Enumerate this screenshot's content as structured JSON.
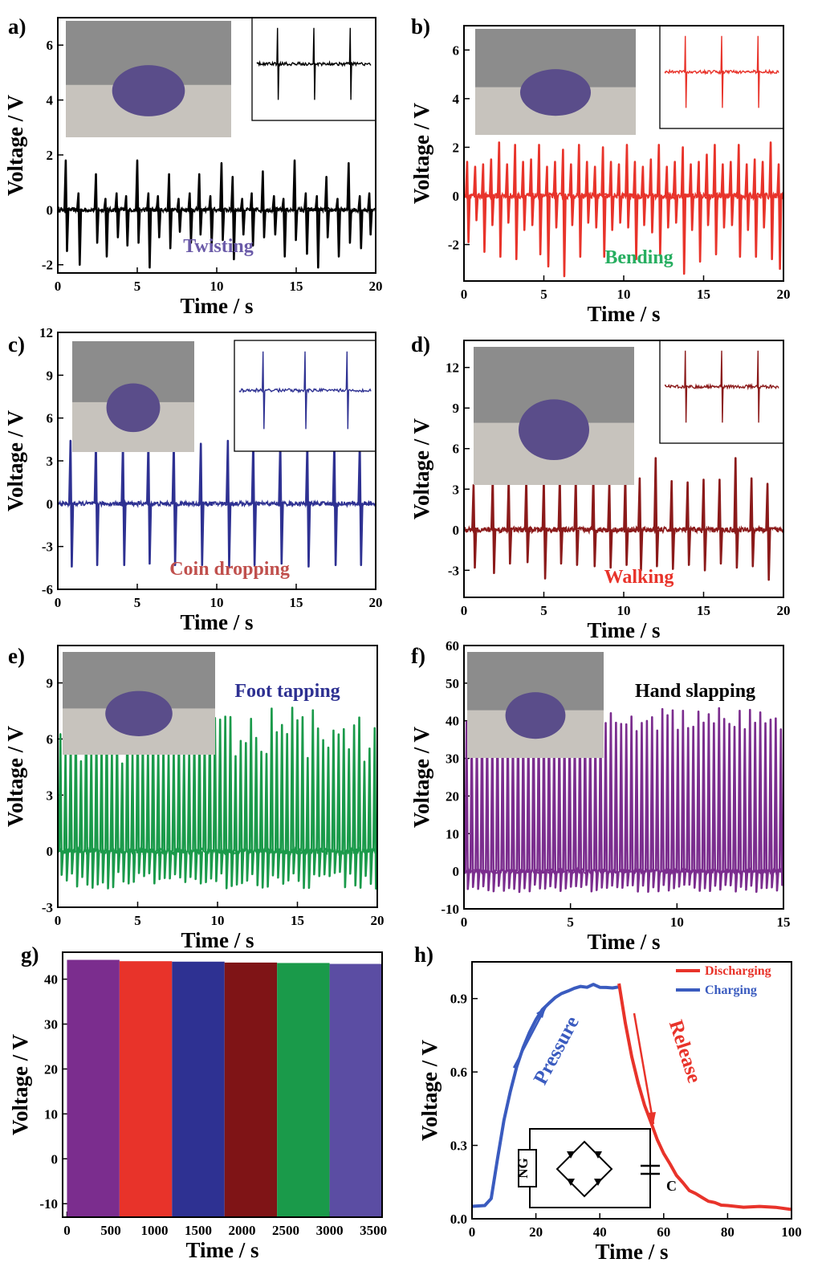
{
  "chart_data": [
    {
      "type": "line",
      "panel_label": "a)",
      "xlabel": "Time / s",
      "ylabel": "Voltage / V",
      "xlim": [
        0,
        20
      ],
      "ylim": [
        -2.3,
        7
      ],
      "xticks": [
        0,
        5,
        10,
        15,
        20
      ],
      "yticks": [
        -2,
        0,
        2,
        4,
        6
      ],
      "annotation": "Twisting",
      "annotation_color": "#6a5aa8",
      "series_color": "#000000",
      "baseline": 0,
      "spike_times": [
        0.5,
        1.3,
        2.4,
        3.0,
        3.7,
        4.3,
        5.0,
        5.7,
        6.3,
        7.0,
        7.6,
        8.3,
        8.9,
        9.6,
        10.3,
        11.0,
        11.6,
        12.2,
        12.9,
        13.6,
        14.2,
        14.9,
        15.6,
        16.3,
        16.9,
        17.6,
        18.3,
        19.0,
        19.6
      ],
      "spike_peaks": [
        1.8,
        0.6,
        1.3,
        0.4,
        0.6,
        0.5,
        1.8,
        0.6,
        0.5,
        1.3,
        0.4,
        0.6,
        1.3,
        0.5,
        1.7,
        1.2,
        0.4,
        0.6,
        1.4,
        0.5,
        0.4,
        1.8,
        0.6,
        0.5,
        1.2,
        0.4,
        1.7,
        0.5,
        0.6
      ],
      "spike_troughs": [
        -1.5,
        -2.0,
        -1.2,
        -1.7,
        -1.0,
        -1.3,
        -1.2,
        -2.1,
        -1.0,
        -1.4,
        -0.8,
        -1.2,
        -0.9,
        -1.3,
        -1.1,
        -1.8,
        -0.9,
        -1.3,
        -1.0,
        -0.9,
        -1.7,
        -1.1,
        -1.6,
        -2.1,
        -1.0,
        -1.7,
        -1.2,
        -1.4,
        -0.9
      ],
      "noise_amplitude": 0.08,
      "inset_caption": "",
      "inset_photo": "photo: fingers twisting the nanogenerator"
    },
    {
      "type": "line",
      "panel_label": "b)",
      "xlabel": "Time / s",
      "ylabel": "Voltage / V",
      "xlim": [
        0,
        20
      ],
      "ylim": [
        -3.5,
        7
      ],
      "xticks": [
        0,
        5,
        10,
        15,
        20
      ],
      "yticks": [
        -2,
        0,
        2,
        4,
        6
      ],
      "annotation": "Bending",
      "annotation_color": "#27ae60",
      "series_color": "#e8332a",
      "baseline": 0,
      "spike_times": [
        0.2,
        0.7,
        1.2,
        1.7,
        2.2,
        2.7,
        3.2,
        3.7,
        4.2,
        4.7,
        5.2,
        5.7,
        6.2,
        6.7,
        7.2,
        7.7,
        8.2,
        8.7,
        9.2,
        9.7,
        10.2,
        10.7,
        11.2,
        11.7,
        12.2,
        12.7,
        13.2,
        13.7,
        14.2,
        14.7,
        15.2,
        15.7,
        16.2,
        16.7,
        17.2,
        17.7,
        18.2,
        18.7,
        19.2,
        19.7
      ],
      "spike_peaks": [
        1.4,
        1.2,
        1.3,
        1.5,
        2.2,
        1.3,
        2.1,
        1.4,
        1.5,
        2.1,
        1.2,
        1.4,
        1.9,
        1.3,
        2.1,
        1.4,
        1.2,
        2.0,
        1.4,
        1.3,
        2.1,
        1.4,
        1.2,
        1.5,
        2.1,
        1.2,
        1.4,
        2.0,
        1.3,
        1.4,
        1.7,
        2.1,
        1.3,
        1.4,
        2.1,
        1.3,
        1.5,
        1.4,
        2.2,
        1.3
      ],
      "spike_troughs": [
        -1.9,
        -1.0,
        -2.3,
        -1.2,
        -2.5,
        -1.1,
        -2.6,
        -1.4,
        -1.2,
        -2.4,
        -2.9,
        -1.3,
        -3.3,
        -1.2,
        -2.5,
        -1.1,
        -1.3,
        -2.5,
        -1.4,
        -1.1,
        -1.3,
        -2.6,
        -1.2,
        -1.5,
        -2.4,
        -1.3,
        -1.1,
        -3.2,
        -1.4,
        -2.7,
        -1.2,
        -2.4,
        -1.3,
        -1.2,
        -2.5,
        -1.4,
        -2.5,
        -1.3,
        -2.6,
        -3.0
      ],
      "noise_amplitude": 0.12,
      "inset_caption": "",
      "inset_photo": "photo: fingers bending the device"
    },
    {
      "type": "line",
      "panel_label": "c)",
      "xlabel": "Time / s",
      "ylabel": "Voltage / V",
      "xlim": [
        0,
        20
      ],
      "ylim": [
        -6,
        12
      ],
      "xticks": [
        0,
        5,
        10,
        15,
        20
      ],
      "yticks": [
        -6,
        -3,
        0,
        3,
        6,
        9,
        12
      ],
      "annotation": "Coin dropping",
      "annotation_color": "#c0504d",
      "series_color": "#2e3192",
      "baseline": 0,
      "spike_times": [
        0.8,
        2.4,
        4.1,
        5.7,
        7.3,
        9.0,
        10.7,
        12.3,
        14.0,
        15.7,
        17.4,
        19.0
      ],
      "spike_peaks": [
        4.4,
        4.3,
        4.2,
        4.4,
        4.3,
        4.2,
        4.4,
        4.4,
        4.3,
        4.2,
        4.3,
        4.2
      ],
      "spike_troughs": [
        -4.4,
        -4.3,
        -4.3,
        -4.2,
        -4.3,
        -4.3,
        -4.4,
        -4.3,
        -4.2,
        -4.4,
        -4.3,
        -4.3
      ],
      "noise_amplitude": 0.15,
      "inset_caption": "",
      "inset_photo": "photo: coin dropped on the device"
    },
    {
      "type": "line",
      "panel_label": "d)",
      "xlabel": "Time / s",
      "ylabel": "Voltage / V",
      "xlim": [
        0,
        20
      ],
      "ylim": [
        -5,
        14
      ],
      "xticks": [
        0,
        5,
        10,
        15,
        20
      ],
      "yticks": [
        -3,
        0,
        3,
        6,
        9,
        12
      ],
      "annotation": "Walking",
      "annotation_color": "#e8332a",
      "series_color": "#8b1a1a",
      "baseline": 0,
      "spike_times": [
        0.6,
        1.8,
        2.8,
        3.9,
        5.0,
        6.0,
        7.0,
        8.1,
        9.1,
        10.1,
        11.0,
        12.0,
        13.0,
        14.0,
        15.0,
        16.0,
        17.0,
        18.0,
        19.0
      ],
      "spike_peaks": [
        3.3,
        3.9,
        3.8,
        3.8,
        3.7,
        3.9,
        3.9,
        4.0,
        3.5,
        4.0,
        3.8,
        5.3,
        3.6,
        3.5,
        3.7,
        3.7,
        5.3,
        3.8,
        3.4
      ],
      "spike_troughs": [
        -2.8,
        -3.2,
        -2.5,
        -2.4,
        -3.6,
        -2.5,
        -2.6,
        -2.7,
        -2.8,
        -2.6,
        -3.0,
        -2.7,
        -2.9,
        -2.6,
        -3.0,
        -2.5,
        -2.8,
        -2.7,
        -3.7
      ],
      "noise_amplitude": 0.2,
      "inset_caption": "",
      "inset_photo": "photo: walking on the device"
    },
    {
      "type": "line",
      "panel_label": "e)",
      "xlabel": "Time / s",
      "ylabel": "Voltage / V",
      "xlim": [
        0,
        20
      ],
      "ylim": [
        -3,
        11
      ],
      "xticks": [
        0,
        5,
        10,
        15,
        20
      ],
      "yticks": [
        -3,
        0,
        3,
        6,
        9
      ],
      "annotation": "Foot tapping",
      "annotation_color": "#2e3192",
      "series_color": "#1a9a4a",
      "baseline": 0,
      "spike_count": 62,
      "peak_min": 4.6,
      "peak_max": 7.7,
      "trough_min": -2.0,
      "trough_max": -1.1,
      "noise_amplitude": 0.15,
      "inset_caption": "",
      "inset_photo": "photo: foot tapping with oscilloscope"
    },
    {
      "type": "line",
      "panel_label": "f)",
      "xlabel": "Time / s",
      "ylabel": "Voltage / V",
      "xlim": [
        0,
        15
      ],
      "ylim": [
        -10,
        60
      ],
      "xticks": [
        0,
        5,
        10,
        15
      ],
      "yticks": [
        -10,
        0,
        10,
        20,
        30,
        40,
        50,
        60
      ],
      "annotation": "Hand slapping",
      "annotation_color": "#000000",
      "series_color": "#7b2d8e",
      "baseline": 0,
      "spike_count": 62,
      "peak_min": 37.0,
      "peak_max": 43.5,
      "trough_min": -5.5,
      "trough_max": -3.5,
      "noise_amplitude": 0.6,
      "inset_caption": "",
      "inset_photo": "photo: hand slapping with oscilloscope"
    },
    {
      "type": "bar",
      "panel_label": "g)",
      "xlabel": "Time / s",
      "ylabel": "Voltage / V",
      "xlim": [
        -50,
        3600
      ],
      "ylim": [
        -13,
        46
      ],
      "xticks": [
        0,
        500,
        1000,
        1500,
        2000,
        2500,
        3000,
        3500
      ],
      "yticks": [
        -10,
        0,
        10,
        20,
        30,
        40
      ],
      "segments": [
        {
          "x0": 0,
          "x1": 600,
          "top": 44.3,
          "color": "#7b2d8e"
        },
        {
          "x0": 600,
          "x1": 1200,
          "top": 44.0,
          "color": "#e8332a"
        },
        {
          "x0": 1200,
          "x1": 1800,
          "top": 43.9,
          "color": "#2e3192"
        },
        {
          "x0": 1800,
          "x1": 2400,
          "top": 43.7,
          "color": "#7f1416"
        },
        {
          "x0": 2400,
          "x1": 3000,
          "top": 43.6,
          "color": "#1a9a4a"
        },
        {
          "x0": 3000,
          "x1": 3600,
          "top": 43.4,
          "color": "#5b4da3"
        }
      ],
      "bottom": -13
    },
    {
      "type": "line",
      "panel_label": "h)",
      "xlabel": "Time / s",
      "ylabel": "Voltage / V",
      "xlim": [
        0,
        100
      ],
      "ylim": [
        0,
        1.05
      ],
      "xticks": [
        0,
        20,
        40,
        60,
        80,
        100
      ],
      "yticks": [
        0.0,
        0.3,
        0.6,
        0.9
      ],
      "ytick_labels": [
        "0.0",
        "0.3",
        "0.6",
        "0.9"
      ],
      "series": [
        {
          "name": "Charging",
          "color": "#3a5bbf",
          "x": [
            0,
            4,
            6,
            8,
            10,
            12,
            14,
            16,
            18,
            20,
            22,
            24,
            26,
            28,
            30,
            32,
            34,
            36,
            38,
            40,
            42,
            44,
            46
          ],
          "y": [
            0.05,
            0.05,
            0.08,
            0.25,
            0.4,
            0.52,
            0.62,
            0.7,
            0.76,
            0.81,
            0.85,
            0.88,
            0.9,
            0.92,
            0.93,
            0.94,
            0.95,
            0.95,
            0.96,
            0.95,
            0.95,
            0.94,
            0.95
          ]
        },
        {
          "name": "Discharging",
          "color": "#e8332a",
          "x": [
            46,
            48,
            50,
            52,
            54,
            56,
            58,
            60,
            62,
            64,
            66,
            68,
            70,
            72,
            74,
            76,
            78,
            80,
            85,
            90,
            95,
            100
          ],
          "y": [
            0.96,
            0.8,
            0.66,
            0.55,
            0.46,
            0.39,
            0.32,
            0.27,
            0.22,
            0.18,
            0.15,
            0.12,
            0.1,
            0.085,
            0.075,
            0.065,
            0.06,
            0.055,
            0.05,
            0.05,
            0.05,
            0.04
          ]
        }
      ],
      "annotation_pressure": "Pressure",
      "annotation_release": "Release",
      "circuit_label_ng": "NG",
      "circuit_label_c": "C"
    }
  ]
}
